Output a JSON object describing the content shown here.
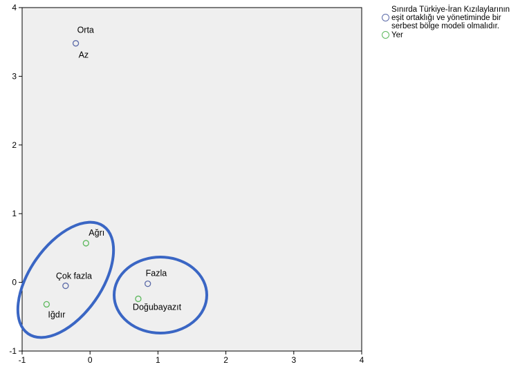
{
  "colors": {
    "plot_background": "#efefef",
    "highlight_ellipse": "#3a66c4",
    "axis": "#000000"
  },
  "legend": {
    "placement": "top-right",
    "items": [
      {
        "label": "Sınırda Türkiye-İran Kızılaylarının eşit ortaklığı ve yönetiminde bir serbest bölge modeli olmalıdır.",
        "color": "#5b6aa8"
      },
      {
        "label": "Yer",
        "color": "#5cb85c"
      }
    ]
  },
  "chart_data": {
    "type": "scatter",
    "title": "",
    "xlabel": "",
    "ylabel": "",
    "xlim": [
      -1,
      4
    ],
    "ylim": [
      -1,
      4
    ],
    "xticks": [
      -1,
      0,
      1,
      2,
      3,
      4
    ],
    "yticks": [
      -1,
      0,
      1,
      2,
      3,
      4
    ],
    "grid": false,
    "series": [
      {
        "name": "Sınırda Türkiye-İran Kızılaylarının eşit ortaklığı ve yönetiminde bir serbest bölge modeli olmalıdır.",
        "color": "#5b6aa8",
        "points": [
          {
            "label": "Orta",
            "x": -0.21,
            "y": 3.48
          },
          {
            "label": "Az",
            "x": -0.21,
            "y": 3.48
          },
          {
            "label": "Çok fazla",
            "x": -0.36,
            "y": -0.05
          },
          {
            "label": "Fazla",
            "x": 0.85,
            "y": -0.02
          }
        ]
      },
      {
        "name": "Yer",
        "color": "#5cb85c",
        "points": [
          {
            "label": "Ağrı",
            "x": -0.06,
            "y": 0.57
          },
          {
            "label": "Iğdır",
            "x": -0.64,
            "y": -0.32
          },
          {
            "label": "Doğubayazıt",
            "x": 0.71,
            "y": -0.24
          }
        ]
      }
    ]
  }
}
